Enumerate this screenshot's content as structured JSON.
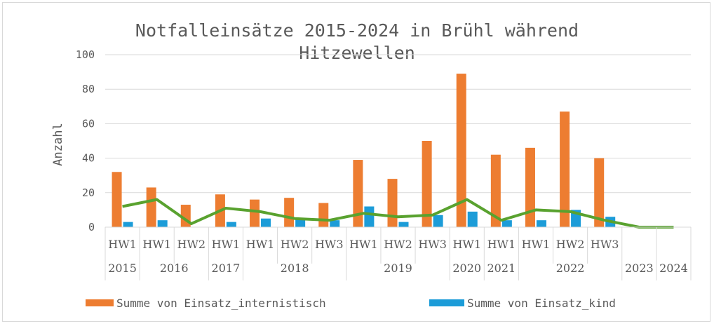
{
  "chart_data": {
    "type": "bar",
    "title_line1": "Notfalleinsätze 2015-2024 in Brühl während",
    "title_line2": "Hitzewellen",
    "ylabel": "Anzahl",
    "ylim": [
      0,
      100
    ],
    "yticks": [
      "0",
      "20",
      "40",
      "60",
      "80",
      "100"
    ],
    "categories": [
      {
        "hw": "HW1",
        "year": "2015"
      },
      {
        "hw": "HW1",
        "year": "2016"
      },
      {
        "hw": "HW2",
        "year": "2016"
      },
      {
        "hw": "HW1",
        "year": "2017"
      },
      {
        "hw": "HW1",
        "year": "2018"
      },
      {
        "hw": "HW2",
        "year": "2018"
      },
      {
        "hw": "HW3",
        "year": "2018"
      },
      {
        "hw": "HW1",
        "year": "2019"
      },
      {
        "hw": "HW2",
        "year": "2019"
      },
      {
        "hw": "HW3",
        "year": "2019"
      },
      {
        "hw": "HW1",
        "year": "2020"
      },
      {
        "hw": "HW1",
        "year": "2021"
      },
      {
        "hw": "HW1",
        "year": "2022"
      },
      {
        "hw": "HW2",
        "year": "2022"
      },
      {
        "hw": "HW3",
        "year": "2022"
      },
      {
        "hw": "",
        "year": "2023"
      },
      {
        "hw": "",
        "year": "2024"
      }
    ],
    "years": [
      "2015",
      "2016",
      "2017",
      "2018",
      "2019",
      "2020",
      "2021",
      "2022",
      "2023",
      "2024"
    ],
    "series": [
      {
        "name": "Summe von Einsatz_internistisch",
        "type": "bar",
        "color": "#ED7D31",
        "values": [
          32,
          23,
          13,
          19,
          16,
          17,
          14,
          39,
          28,
          50,
          89,
          42,
          46,
          67,
          40,
          0,
          0
        ]
      },
      {
        "name": "Summe von Einsatz_kind",
        "type": "bar",
        "color": "#1C9CD8",
        "values": [
          3,
          4,
          0,
          3,
          5,
          5,
          4,
          12,
          3,
          7,
          9,
          4,
          4,
          10,
          6,
          0,
          0
        ]
      },
      {
        "name": "",
        "type": "line",
        "color": "#59A22F",
        "values": [
          12,
          16,
          2,
          11,
          9,
          5,
          4,
          8,
          6,
          7,
          16,
          4,
          10,
          9,
          4,
          0,
          0
        ]
      }
    ],
    "legend": [
      {
        "label": "Summe von Einsatz_internistisch",
        "color": "#ED7D31"
      },
      {
        "label": "Summe von Einsatz_kind",
        "color": "#1C9CD8"
      }
    ]
  }
}
